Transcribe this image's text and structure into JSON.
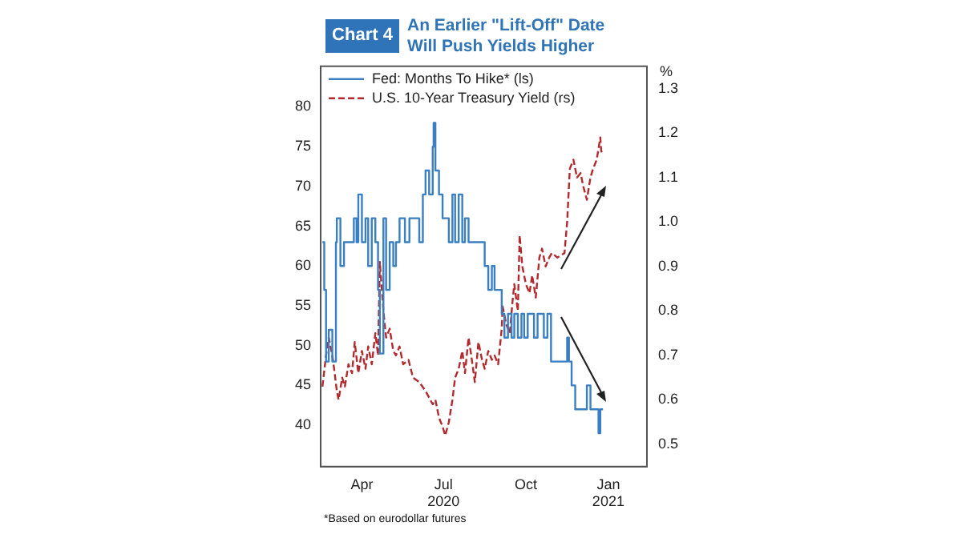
{
  "chart_data": {
    "type": "line",
    "title": "An Earlier \"Lift-Off\" Date\nWill Push Yields Higher",
    "subtitle": "Chart 4",
    "y2label": "%",
    "annotations": [
      "*Based on eurodollar futures"
    ],
    "legend": "top left",
    "grid": false,
    "marker": "none",
    "xlim": [
      "2020-02-15",
      "2021-02-13"
    ],
    "xticks": [
      {
        "value": "2020-04-01",
        "label": "Apr"
      },
      {
        "value": "2020-07-01",
        "label": "Jul\n2020"
      },
      {
        "value": "2020-10-01",
        "label": "Oct"
      },
      {
        "value": "2021-01-01",
        "label": "Jan\n2021"
      }
    ],
    "ylim": [
      34.8,
      85.1
    ],
    "yticks": [
      40,
      45,
      50,
      55,
      60,
      65,
      70,
      75,
      80
    ],
    "y2lim": [
      0.45,
      1.35
    ],
    "y2ticks": [
      0.5,
      0.6,
      0.7,
      0.8,
      0.9,
      {
        "value": 1,
        "label": "1.0"
      },
      1.1,
      1.2,
      1.3
    ],
    "series": [
      {
        "name": "Fed: Months To Hike* (ls)",
        "type": "step",
        "color": "#3a7fc1",
        "line_style": "solid",
        "x": [
          "2020-02-17",
          "2020-02-19",
          "2020-02-21",
          "2020-02-24",
          "2020-02-28",
          "2020-03-03",
          "2020-03-04",
          "2020-03-08",
          "2020-03-12",
          "2020-03-19",
          "2020-03-23",
          "2020-03-26",
          "2020-03-28",
          "2020-04-01",
          "2020-04-05",
          "2020-04-08",
          "2020-04-12",
          "2020-04-16",
          "2020-04-19",
          "2020-04-21",
          "2020-04-25",
          "2020-04-28",
          "2020-05-02",
          "2020-05-06",
          "2020-05-09",
          "2020-05-13",
          "2020-05-19",
          "2020-05-24",
          "2020-05-30",
          "2020-06-04",
          "2020-06-08",
          "2020-06-11",
          "2020-06-15",
          "2020-06-19",
          "2020-06-20",
          "2020-06-22",
          "2020-06-26",
          "2020-06-30",
          "2020-07-03",
          "2020-07-07",
          "2020-07-11",
          "2020-07-14",
          "2020-07-18",
          "2020-07-22",
          "2020-07-25",
          "2020-07-29",
          "2020-08-05",
          "2020-08-13",
          "2020-08-16",
          "2020-08-20",
          "2020-08-24",
          "2020-08-27",
          "2020-08-31",
          "2020-09-04",
          "2020-09-07",
          "2020-09-11",
          "2020-09-15",
          "2020-09-18",
          "2020-09-22",
          "2020-09-26",
          "2020-09-29",
          "2020-10-03",
          "2020-10-07",
          "2020-10-10",
          "2020-10-14",
          "2020-10-18",
          "2020-10-21",
          "2020-10-25",
          "2020-10-29",
          "2020-11-05",
          "2020-11-13",
          "2020-11-16",
          "2020-11-18",
          "2020-11-21",
          "2020-11-25",
          "2020-12-01",
          "2020-12-06",
          "2020-12-08",
          "2020-12-12",
          "2020-12-19",
          "2020-12-21",
          "2020-12-23",
          "2020-12-26"
        ],
        "values": [
          63,
          57,
          48,
          52,
          48,
          63,
          66,
          60,
          63,
          63,
          66,
          63,
          69,
          63,
          66,
          60,
          66,
          63,
          57,
          49,
          66,
          57,
          63,
          60,
          63,
          66,
          63,
          66,
          66,
          63,
          69,
          72,
          69,
          75,
          78,
          72,
          69,
          66,
          66,
          63,
          69,
          63,
          69,
          63,
          66,
          63,
          63,
          63,
          60,
          57,
          60,
          57,
          57,
          54,
          51,
          54,
          51,
          54,
          51,
          54,
          51,
          54,
          54,
          51,
          54,
          54,
          51,
          54,
          48,
          48,
          48,
          51,
          48,
          45,
          42,
          42,
          42,
          45,
          42,
          42,
          39,
          42,
          42
        ]
      },
      {
        "name": "U.S. 10-Year Treasury Yield (rs)",
        "type": "line",
        "axis": "y2",
        "color": "#b22a2e",
        "line_style": "dashed",
        "x": [
          "2020-02-17",
          "2020-02-21",
          "2020-02-24",
          "2020-02-28",
          "2020-03-01",
          "2020-03-04",
          "2020-03-06",
          "2020-03-10",
          "2020-03-13",
          "2020-03-17",
          "2020-03-21",
          "2020-03-24",
          "2020-03-28",
          "2020-04-01",
          "2020-04-05",
          "2020-04-08",
          "2020-04-12",
          "2020-04-16",
          "2020-04-19",
          "2020-04-21",
          "2020-04-25",
          "2020-04-28",
          "2020-05-02",
          "2020-05-06",
          "2020-05-09",
          "2020-05-13",
          "2020-05-17",
          "2020-05-23",
          "2020-05-28",
          "2020-06-04",
          "2020-06-11",
          "2020-06-19",
          "2020-06-22",
          "2020-06-26",
          "2020-06-30",
          "2020-07-03",
          "2020-07-07",
          "2020-07-11",
          "2020-07-14",
          "2020-07-18",
          "2020-07-22",
          "2020-07-25",
          "2020-07-29",
          "2020-08-01",
          "2020-08-05",
          "2020-08-09",
          "2020-08-13",
          "2020-08-16",
          "2020-08-20",
          "2020-08-24",
          "2020-08-27",
          "2020-08-31",
          "2020-09-04",
          "2020-09-05",
          "2020-09-09",
          "2020-09-13",
          "2020-09-16",
          "2020-09-18",
          "2020-09-22",
          "2020-09-24",
          "2020-09-27",
          "2020-10-01",
          "2020-10-05",
          "2020-10-08",
          "2020-10-12",
          "2020-10-16",
          "2020-10-19",
          "2020-10-23",
          "2020-10-27",
          "2020-10-30",
          "2020-11-05",
          "2020-11-13",
          "2020-11-16",
          "2020-11-19",
          "2020-11-23",
          "2020-11-27",
          "2020-12-01",
          "2020-12-04",
          "2020-12-08",
          "2020-12-12",
          "2020-12-15",
          "2020-12-19",
          "2020-12-23",
          "2020-12-24",
          "2020-12-26"
        ],
        "values": [
          0.63,
          0.7,
          0.74,
          0.7,
          0.67,
          0.62,
          0.6,
          0.65,
          0.63,
          0.68,
          0.66,
          0.73,
          0.66,
          0.71,
          0.67,
          0.72,
          0.68,
          0.75,
          0.7,
          0.91,
          0.8,
          0.74,
          0.76,
          0.71,
          0.7,
          0.72,
          0.68,
          0.69,
          0.65,
          0.64,
          0.62,
          0.59,
          0.6,
          0.56,
          0.54,
          0.52,
          0.55,
          0.6,
          0.65,
          0.67,
          0.71,
          0.66,
          0.74,
          0.7,
          0.64,
          0.73,
          0.69,
          0.67,
          0.71,
          0.69,
          0.7,
          0.68,
          0.76,
          0.81,
          0.77,
          0.75,
          0.82,
          0.86,
          0.8,
          0.97,
          0.9,
          0.86,
          0.84,
          0.88,
          0.83,
          0.92,
          0.94,
          0.9,
          0.92,
          0.93,
          0.92,
          0.93,
          1.0,
          1.12,
          1.14,
          1.1,
          1.11,
          1.08,
          1.05,
          1.1,
          1.12,
          1.14,
          1.19,
          1.16,
          1.15
        ]
      }
    ]
  }
}
